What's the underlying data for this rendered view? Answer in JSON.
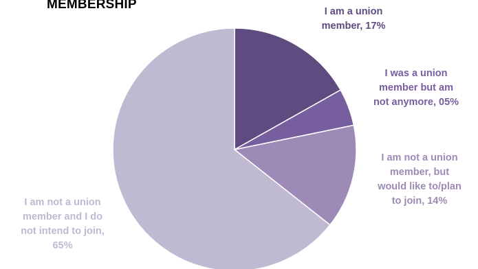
{
  "title": "MEMBERSHIP",
  "chart_data": {
    "type": "pie",
    "title": "MEMBERSHIP",
    "start_angle_deg": 0,
    "direction": "clockwise",
    "slices": [
      {
        "label": "I am a union member, 17%",
        "display": "I am a union\nmember, 17%",
        "value": 17,
        "color": "#5f4b80"
      },
      {
        "label": "I was a union member but am not anymore, 05%",
        "display": "I was a union\nmember but am\nnot anymore, 05%",
        "value": 5,
        "color": "#775e9f"
      },
      {
        "label": "I am not a union member, but would like to/plan to join, 14%",
        "display": "I am not a union\nmember, but\nwould like to/plan\nto join, 14%",
        "value": 14,
        "color": "#9e8ab6"
      },
      {
        "label": "I am not a union member and I do not intend to join, 65%",
        "display": "I am not a union\nmember and I do\nnot intend to join,\n65%",
        "value": 65,
        "color": "#c0b9d2"
      }
    ],
    "label_colors": [
      "#5f4b80",
      "#775e9f",
      "#9e8ab6",
      "#c0b9d2"
    ]
  }
}
